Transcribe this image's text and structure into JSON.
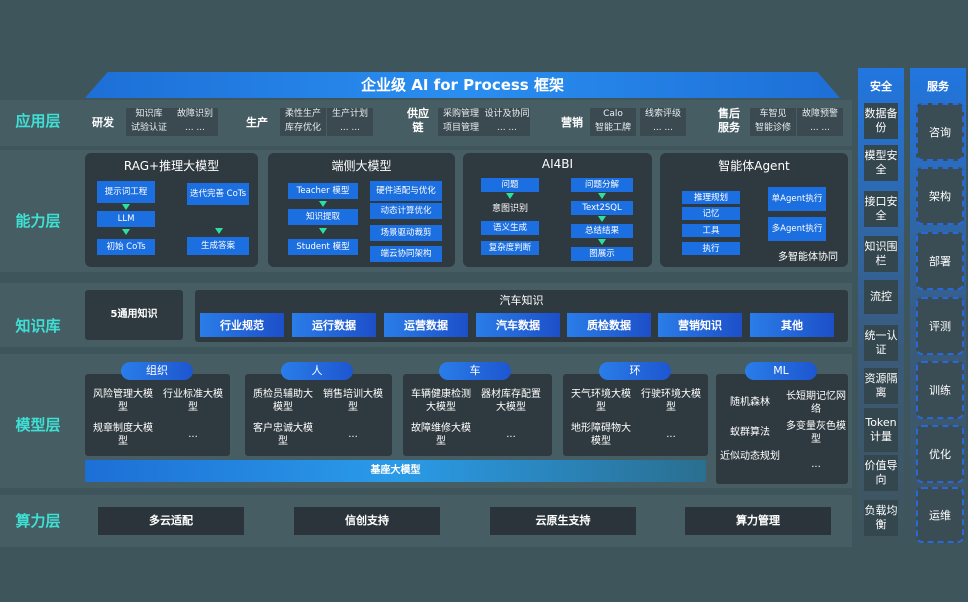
{
  "title": "企业级 AI for Process 框架",
  "layers": {
    "app": "应用层",
    "capability": "能力层",
    "knowledge": "知识库",
    "model": "模型层",
    "compute": "算力层"
  },
  "app_groups": [
    {
      "name": "研发",
      "items": [
        "知识库",
        "试验认证",
        "故障识别",
        "... ..."
      ]
    },
    {
      "name": "生产",
      "items": [
        "柔性生产",
        "库存优化",
        "生产计划",
        "... ..."
      ]
    },
    {
      "name": "供应链",
      "items": [
        "采购管理",
        "项目管理",
        "设计及协同",
        "... ..."
      ]
    },
    {
      "name": "营销",
      "items": [
        "Calo",
        "智能工牌",
        "线索评级",
        "... ..."
      ]
    },
    {
      "name": "售后服务",
      "items": [
        "车智见",
        "智能诊修",
        "故障预警",
        "... ..."
      ]
    }
  ],
  "capability": {
    "rag": {
      "title": "RAG+推理大模型",
      "items": [
        "提示词工程",
        "LLM",
        "初始 CoTs",
        "迭代完善 CoTs",
        "生成答案"
      ]
    },
    "edge": {
      "title": "端侧大模型",
      "items": [
        "Teacher 模型",
        "知识提取",
        "Student 模型",
        "硬件适配与优化",
        "动态计算优化",
        "场景驱动裁剪",
        "端云协同架构"
      ]
    },
    "ai4bi": {
      "title": "AI4BI",
      "items": [
        "问题",
        "意图识别",
        "语义生成",
        "复杂度判断",
        "问题分解",
        "Text2SQL",
        "总结结果",
        "图展示"
      ]
    },
    "agent": {
      "title": "智能体Agent",
      "items": [
        "推理规划",
        "记忆",
        "工具",
        "执行",
        "单Agent执行",
        "多Agent执行"
      ],
      "footer": "多智能体协同"
    }
  },
  "knowledge": {
    "general": "5通用知识",
    "auto_title": "汽车知识",
    "auto_items": [
      "行业规范",
      "运行数据",
      "运营数据",
      "汽车数据",
      "质检数据",
      "营销知识",
      "其他"
    ]
  },
  "models": [
    {
      "name": "组织",
      "items": [
        "风险管理大模型",
        "行业标准大模型",
        "规章制度大模型",
        "..."
      ]
    },
    {
      "name": "人",
      "items": [
        "质检员辅助大模型",
        "销售培训大模型",
        "客户忠诚大模型",
        "..."
      ]
    },
    {
      "name": "车",
      "items": [
        "车辆健康检测大模型",
        "器材库存配置大模型",
        "故障维修大模型",
        "..."
      ]
    },
    {
      "name": "环",
      "items": [
        "天气环境大模型",
        "行驶环境大模型",
        "地形障碍物大模型",
        "..."
      ]
    },
    {
      "name": "ML",
      "items": [
        "随机森林",
        "长短期记忆网络",
        "蚁群算法",
        "多变量灰色模型",
        "近似动态规划",
        "..."
      ]
    }
  ],
  "base_model": "基座大模型",
  "compute": [
    "多云适配",
    "信创支持",
    "云原生支持",
    "算力管理"
  ],
  "security": {
    "title": "安全",
    "items": [
      "数据备份",
      "模型安全",
      "接口安全",
      "知识围栏",
      "流控",
      "统一认证",
      "资源隔离",
      "Token计量",
      "价值导向",
      "负载均衡"
    ]
  },
  "service": {
    "title": "服务",
    "items": [
      "咨询",
      "架构",
      "部署",
      "评测",
      "训练",
      "优化",
      "运维"
    ]
  },
  "colors": {
    "background": "#3f555c",
    "accent_blue": "#1c6fe0",
    "layer_label": "#3fe0d4"
  }
}
